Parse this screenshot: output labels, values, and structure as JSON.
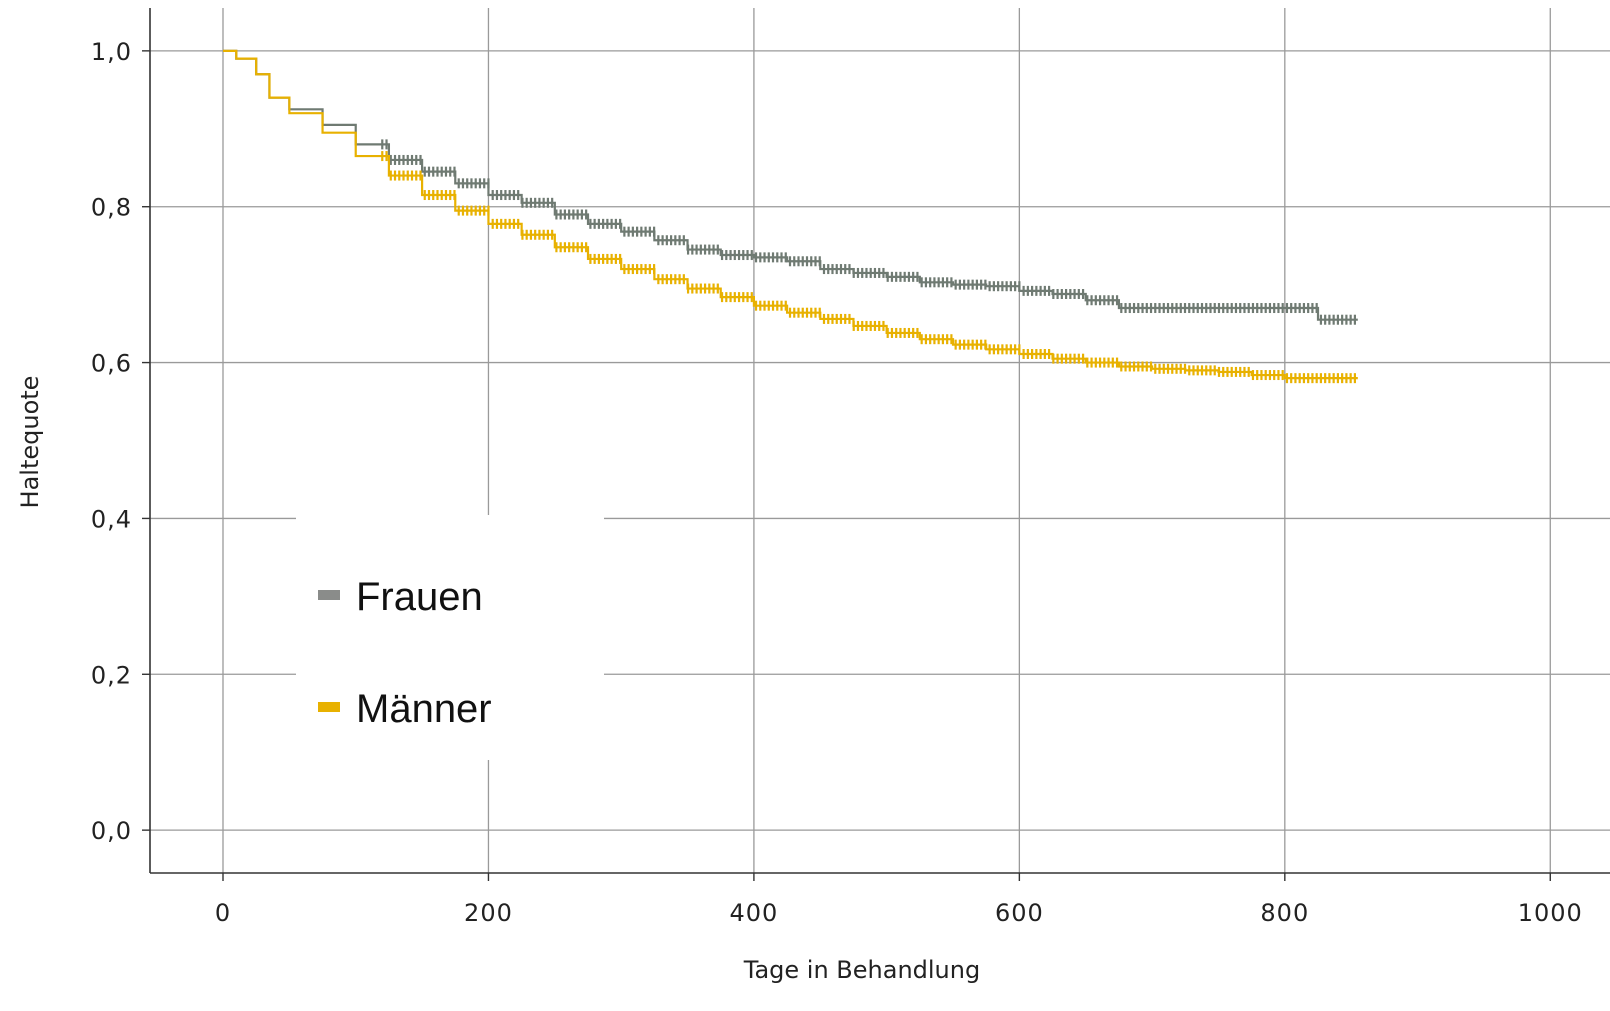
{
  "chart_data": {
    "type": "line",
    "subtype": "kaplan-meier step curve with censor marks",
    "xlabel": "Tage in Behandlung",
    "ylabel": "Haltequote",
    "xlim": [
      -55,
      1045
    ],
    "ylim": [
      -0.055,
      1.055
    ],
    "x_ticks": [
      0,
      200,
      400,
      600,
      800,
      1000
    ],
    "x_tick_labels": [
      "0",
      "200",
      "400",
      "600",
      "800",
      "1000"
    ],
    "y_ticks": [
      0.0,
      0.2,
      0.4,
      0.6,
      0.8,
      1.0
    ],
    "y_tick_labels": [
      "0,0",
      "0,2",
      "0,4",
      "0,6",
      "0,8",
      "1,0"
    ],
    "grid": true,
    "legend_position": "center-left",
    "series": [
      {
        "name": "Frauen",
        "color": "#6f7a72",
        "legend_color": "#8a8c8a",
        "x": [
          0,
          10,
          25,
          35,
          50,
          75,
          100,
          125,
          150,
          175,
          200,
          225,
          250,
          275,
          300,
          325,
          350,
          375,
          400,
          425,
          450,
          475,
          500,
          525,
          550,
          575,
          600,
          625,
          650,
          675,
          700,
          725,
          750,
          775,
          800,
          825,
          850,
          855
        ],
        "y": [
          1.0,
          0.99,
          0.97,
          0.94,
          0.925,
          0.905,
          0.88,
          0.86,
          0.845,
          0.83,
          0.815,
          0.805,
          0.79,
          0.778,
          0.768,
          0.757,
          0.745,
          0.738,
          0.735,
          0.73,
          0.72,
          0.715,
          0.71,
          0.703,
          0.7,
          0.698,
          0.692,
          0.688,
          0.68,
          0.67,
          0.67,
          0.67,
          0.67,
          0.67,
          0.67,
          0.655,
          0.655,
          0.655
        ]
      },
      {
        "name": "Männer",
        "color": "#e8b100",
        "legend_color": "#e8b100",
        "x": [
          0,
          10,
          25,
          35,
          50,
          75,
          100,
          125,
          150,
          175,
          200,
          225,
          250,
          275,
          300,
          325,
          350,
          375,
          400,
          425,
          450,
          475,
          500,
          525,
          550,
          575,
          600,
          625,
          650,
          675,
          700,
          725,
          750,
          775,
          800,
          825,
          850,
          855
        ],
        "y": [
          1.0,
          0.99,
          0.97,
          0.94,
          0.92,
          0.895,
          0.865,
          0.84,
          0.815,
          0.795,
          0.778,
          0.764,
          0.748,
          0.733,
          0.72,
          0.707,
          0.695,
          0.684,
          0.673,
          0.664,
          0.656,
          0.647,
          0.638,
          0.63,
          0.623,
          0.617,
          0.611,
          0.605,
          0.6,
          0.595,
          0.592,
          0.59,
          0.588,
          0.584,
          0.58,
          0.58,
          0.58,
          0.58
        ]
      }
    ]
  }
}
